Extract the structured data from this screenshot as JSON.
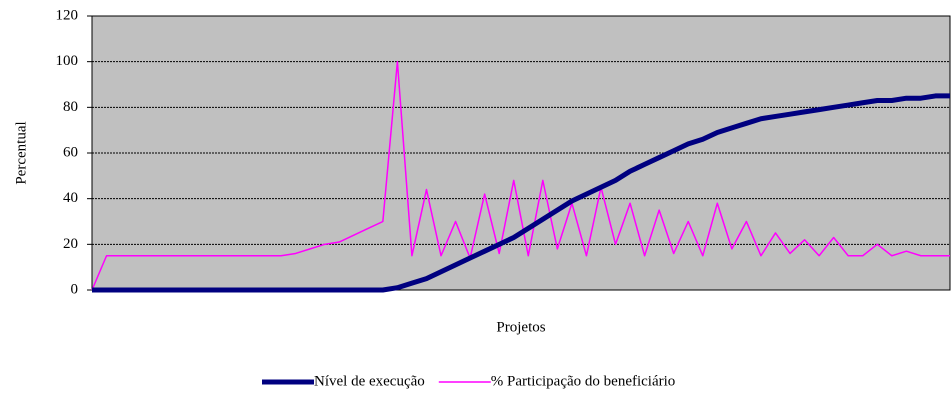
{
  "chart_data": {
    "type": "line",
    "y_label": "Percentual",
    "x_label": "Projetos",
    "categories": [
      null,
      null,
      null,
      null,
      null,
      null,
      null,
      null,
      null,
      null,
      null,
      null,
      null,
      null,
      null,
      null,
      null,
      null,
      null,
      null,
      null,
      null,
      null,
      null,
      null,
      null,
      null,
      null,
      null,
      null,
      null,
      null,
      null,
      null,
      null,
      null,
      null,
      null,
      null,
      null,
      null,
      null,
      null,
      null,
      null,
      null,
      null,
      null,
      null,
      null,
      null,
      null,
      null,
      null,
      null,
      null,
      null,
      null,
      null,
      null
    ],
    "series": [
      {
        "name": "Nível de execução",
        "color": "#000080",
        "values": [
          0,
          0,
          0,
          0,
          0,
          0,
          0,
          0,
          0,
          0,
          0,
          0,
          0,
          0,
          0,
          0,
          0,
          0,
          0,
          0,
          0,
          1,
          3,
          5,
          8,
          11,
          14,
          17,
          20,
          23,
          27,
          31,
          35,
          39,
          42,
          45,
          48,
          52,
          55,
          58,
          61,
          64,
          66,
          69,
          71,
          73,
          75,
          76,
          77,
          78,
          79,
          80,
          81,
          82,
          83,
          83,
          84,
          84,
          85,
          85
        ]
      },
      {
        "name": "% Participação do beneficiário",
        "color": "#ff00ff",
        "values": [
          0,
          15,
          15,
          15,
          15,
          15,
          15,
          15,
          15,
          15,
          15,
          15,
          15,
          15,
          16,
          18,
          20,
          21,
          24,
          27,
          30,
          100,
          15,
          44,
          15,
          30,
          14,
          42,
          16,
          48,
          15,
          48,
          18,
          38,
          15,
          45,
          20,
          38,
          15,
          35,
          16,
          30,
          15,
          38,
          18,
          30,
          15,
          25,
          16,
          22,
          15,
          23,
          15,
          15,
          20,
          15,
          17,
          15,
          15,
          15
        ]
      }
    ],
    "ylim": [
      0,
      120
    ],
    "yticks": [
      0,
      20,
      40,
      60,
      80,
      100,
      120
    ],
    "grid": true,
    "legend": "bottom"
  }
}
